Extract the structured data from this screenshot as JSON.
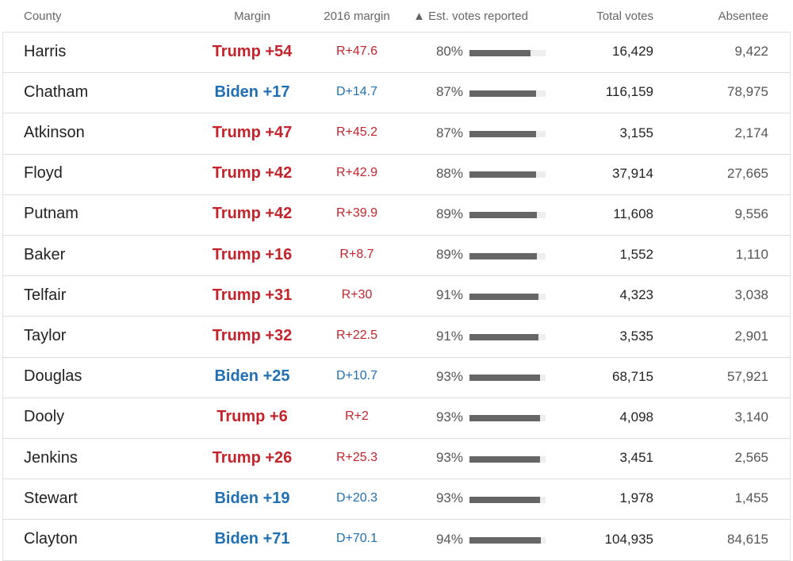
{
  "table": {
    "headers": [
      "County",
      "Margin",
      "2016 margin",
      "▲ Est. votes reported",
      "Total votes",
      "Absentee"
    ],
    "rows": [
      {
        "county": "Harris",
        "margin": "Trump +54",
        "margin_2016": "R+47.6",
        "color": "#c3242c",
        "reported": {
          "value": 80,
          "label": "80%"
        },
        "total": "16,429",
        "absentee": "9,422"
      },
      {
        "county": "Chatham",
        "margin": "Biden +17",
        "margin_2016": "D+14.7",
        "color": "#1f6fb2",
        "reported": {
          "value": 87,
          "label": "87%"
        },
        "total": "116,159",
        "absentee": "78,975"
      },
      {
        "county": "Atkinson",
        "margin": "Trump +47",
        "margin_2016": "R+45.2",
        "color": "#c3242c",
        "reported": {
          "value": 87,
          "label": "87%"
        },
        "total": "3,155",
        "absentee": "2,174"
      },
      {
        "county": "Floyd",
        "margin": "Trump +42",
        "margin_2016": "R+42.9",
        "color": "#c3242c",
        "reported": {
          "value": 88,
          "label": "88%"
        },
        "total": "37,914",
        "absentee": "27,665"
      },
      {
        "county": "Putnam",
        "margin": "Trump +42",
        "margin_2016": "R+39.9",
        "color": "#c3242c",
        "reported": {
          "value": 89,
          "label": "89%"
        },
        "total": "11,608",
        "absentee": "9,556"
      },
      {
        "county": "Baker",
        "margin": "Trump +16",
        "margin_2016": "R+8.7",
        "color": "#c3242c",
        "reported": {
          "value": 89,
          "label": "89%"
        },
        "total": "1,552",
        "absentee": "1,110"
      },
      {
        "county": "Telfair",
        "margin": "Trump +31",
        "margin_2016": "R+30",
        "color": "#c3242c",
        "reported": {
          "value": 91,
          "label": "91%"
        },
        "total": "4,323",
        "absentee": "3,038"
      },
      {
        "county": "Taylor",
        "margin": "Trump +32",
        "margin_2016": "R+22.5",
        "color": "#c3242c",
        "reported": {
          "value": 91,
          "label": "91%"
        },
        "total": "3,535",
        "absentee": "2,901"
      },
      {
        "county": "Douglas",
        "margin": "Biden +25",
        "margin_2016": "D+10.7",
        "color": "#1f6fb2",
        "reported": {
          "value": 93,
          "label": "93%"
        },
        "total": "68,715",
        "absentee": "57,921"
      },
      {
        "county": "Dooly",
        "margin": "Trump +6",
        "margin_2016": "R+2",
        "color": "#c3242c",
        "reported": {
          "value": 93,
          "label": "93%"
        },
        "total": "4,098",
        "absentee": "3,140"
      },
      {
        "county": "Jenkins",
        "margin": "Trump +26",
        "margin_2016": "R+25.3",
        "color": "#c3242c",
        "reported": {
          "value": 93,
          "label": "93%"
        },
        "total": "3,451",
        "absentee": "2,565"
      },
      {
        "county": "Stewart",
        "margin": "Biden +19",
        "margin_2016": "D+20.3",
        "color": "#1f6fb2",
        "reported": {
          "value": 93,
          "label": "93%"
        },
        "total": "1,978",
        "absentee": "1,455"
      },
      {
        "county": "Clayton",
        "margin": "Biden +71",
        "margin_2016": "D+70.1",
        "color": "#1f6fb2",
        "reported": {
          "value": 94,
          "label": "94%"
        },
        "total": "104,935",
        "absentee": "84,615"
      }
    ]
  }
}
